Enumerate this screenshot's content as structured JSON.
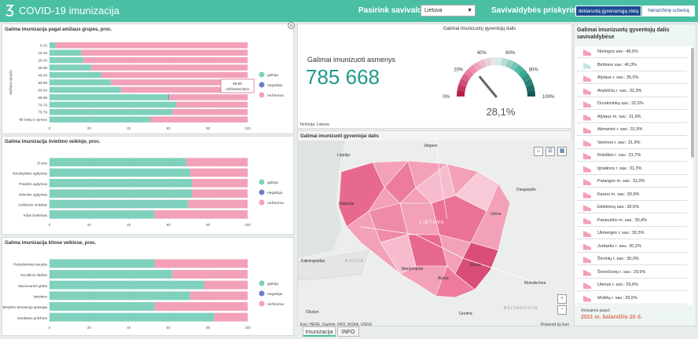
{
  "header": {
    "title": "COVID-19 imunizacija",
    "sav_label": "Pasirink savivaldybę:",
    "select_value": "Lietuva",
    "prisk_label": "Savivaldybės priskyrimas pagal:",
    "btn_declared": "deklaruotą gyvenamąją vietą",
    "btn_hierarchy": "hierarchinę schemą"
  },
  "age_panel": {
    "title": "Galima imunizacija pagal amžiaus grupes, proc.",
    "ylabel": "amžiaus grupės",
    "tooltip_line1": "65-69",
    "tooltip_line2": "nežinoma:39,6"
  },
  "edu_panel": {
    "title": "Galima imunizacija švietimo veikloje, proc."
  },
  "other_panel": {
    "title": "Galima imunizacija kitose veiklose, proc."
  },
  "legend": {
    "galioja": "galioja",
    "negalioja": "negalioja",
    "nezinoma": "nežinoma"
  },
  "kpi": {
    "title": "Galimai imunizuotų gyventojų dalis",
    "label": "Galimai imunizuoti asmenys",
    "value": "785 668",
    "footnote": "Teritorija: Lietuva"
  },
  "gauge": {
    "value": 28.1,
    "value_text": "28,1%",
    "ticks": [
      "0%",
      "20%",
      "40%",
      "60%",
      "80%",
      "100%"
    ]
  },
  "map": {
    "title": "Galimai imunizuoti gyventojai dalis",
    "attribution": "Esri, HERE, Garmin, FAO, NOAA, USGS",
    "powered": "Powered by Esri",
    "labels": {
      "jelgava": "Jelgava",
      "liepaja": "Liepāja",
      "klaipeda": "Klaipėda",
      "lietuva": "LIETUVA",
      "kaliningradas": "Kaliningradas",
      "rusija": "RUSIJA",
      "marijampole": "Marijampolė",
      "alytus": "Alytus",
      "vilnius": "Vilnius",
      "utena": "Utena",
      "daugavpils": "Daugavpils",
      "molodechno": "Molodechna",
      "grodno": "Grodna",
      "olsztyn": "Olsztyn",
      "baltarusija": "BALTARUSIJA"
    }
  },
  "list": {
    "title": "Galimai imunizuotų gyventojų dalis savivaldybėse",
    "items": [
      {
        "label": "Neringos sav.: 48,0%",
        "color": "#f2a1b8"
      },
      {
        "label": "Birštono sav.: 40,3%",
        "color": "#c4e6de"
      },
      {
        "label": "Alytaus r. sav.: 35,0%",
        "color": "#f2a1b8"
      },
      {
        "label": "Anykščių r. sav.: 32,3%",
        "color": "#f2a1b8"
      },
      {
        "label": "Druskininkų sav.: 32,0%",
        "color": "#f2a1b8"
      },
      {
        "label": "Alytaus m. sav.: 31,9%",
        "color": "#f2a1b8"
      },
      {
        "label": "Akmenės r. sav.: 31,9%",
        "color": "#f2a1b8"
      },
      {
        "label": "Varėnos r. sav.: 31,9%",
        "color": "#f2a1b8"
      },
      {
        "label": "Rokiškio r. sav.: 31,7%",
        "color": "#f2a1b8"
      },
      {
        "label": "Ignalinos r. sav.: 31,3%",
        "color": "#f2a1b8"
      },
      {
        "label": "Palangos m. sav.: 31,0%",
        "color": "#f2a1b8"
      },
      {
        "label": "Kauno m. sav.: 30,9%",
        "color": "#f2a1b8"
      },
      {
        "label": "Elektrėnų sav.: 30,5%",
        "color": "#f2a1b8"
      },
      {
        "label": "Panevėžio m. sav.: 30,4%",
        "color": "#f2a1b8"
      },
      {
        "label": "Ukmergės r. sav.: 30,3%",
        "color": "#f2a1b8"
      },
      {
        "label": "Jurbarko r. sav.: 30,2%",
        "color": "#f2a1b8"
      },
      {
        "label": "Širvintų r. sav.: 30,0%",
        "color": "#f2a1b8"
      },
      {
        "label": "Švenčionių r. sav.: 29,9%",
        "color": "#f2a1b8"
      },
      {
        "label": "Utenos r. sav.: 29,6%",
        "color": "#f2a1b8"
      },
      {
        "label": "Molėtų r. sav.: 29,5%",
        "color": "#f2a1b8"
      }
    ],
    "foot_label": "Atnaujinta pagal:",
    "foot_value": "2021 m. balandžio 20 d."
  },
  "tabs": [
    "Imunizacija",
    "INFO"
  ],
  "colors": {
    "galioja": "#7fd1bd",
    "negalioja": "#6b7fc4",
    "nezinoma": "#f2a1b8",
    "header": "#4bbfa3"
  },
  "chart_data": [
    {
      "type": "bar",
      "orientation": "horizontal",
      "stacked": true,
      "categories": [
        "0-15",
        "16-19",
        "20-29",
        "30-39",
        "40-49",
        "50-59",
        "60-64",
        "65-69",
        "70-74",
        "75-79",
        "80 metų ir vyresni"
      ],
      "series": [
        {
          "name": "galioja",
          "values": [
            3,
            16,
            17,
            21,
            26,
            31,
            36,
            60,
            64,
            62,
            51
          ]
        },
        {
          "name": "negalioja",
          "values": [
            0,
            0,
            0,
            0,
            0,
            0,
            0,
            0.4,
            0,
            0,
            0
          ]
        },
        {
          "name": "nežinoma",
          "values": [
            97,
            84,
            83,
            79,
            74,
            69,
            64,
            39.6,
            36,
            38,
            49
          ]
        }
      ],
      "xlim": [
        0,
        100
      ],
      "xticks": [
        "0",
        "20",
        "40",
        "60",
        "80",
        "100"
      ],
      "ylabel": "amžiaus grupės"
    },
    {
      "type": "bar",
      "orientation": "horizontal",
      "stacked": true,
      "categories": [
        "Iš viso",
        "Ikmokyklinis ugdymas",
        "Pradinis ugdymas",
        "Vidurinis ugdymas",
        "Aukštasis mokslas",
        "Kitas švietimas"
      ],
      "series": [
        {
          "name": "galioja",
          "values": [
            69,
            71,
            72,
            72,
            70,
            53
          ]
        },
        {
          "name": "negalioja",
          "values": [
            0,
            0,
            0,
            0,
            0,
            0
          ]
        },
        {
          "name": "nežinoma",
          "values": [
            31,
            29,
            28,
            28,
            30,
            47
          ]
        }
      ],
      "xlim": [
        0,
        100
      ],
      "xticks": [
        "0",
        "20",
        "40",
        "60",
        "80",
        "100"
      ]
    },
    {
      "type": "bar",
      "orientation": "horizontal",
      "stacked": true,
      "categories": [
        "Prekybininkai tarnyba",
        "Socialinis darbas",
        "Stacionarinė globa",
        "Vaistinės",
        "Valstybės tarnautojų apsauga",
        "Sveikatos priežiūra"
      ],
      "series": [
        {
          "name": "galioja",
          "values": [
            53,
            62,
            78,
            71,
            53,
            83
          ]
        },
        {
          "name": "negalioja",
          "values": [
            0,
            0,
            0,
            0,
            0,
            0
          ]
        },
        {
          "name": "nežinoma",
          "values": [
            47,
            38,
            22,
            29,
            47,
            17
          ]
        }
      ],
      "xlim": [
        0,
        100
      ],
      "xticks": [
        "0",
        "20",
        "40",
        "60",
        "80",
        "100"
      ]
    }
  ]
}
